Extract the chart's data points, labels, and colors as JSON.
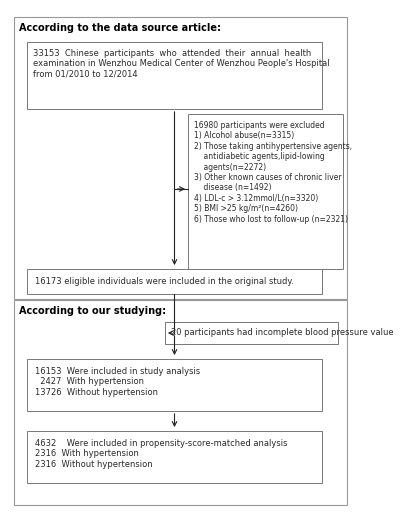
{
  "background_color": "#ffffff",
  "label_section1": "According to the data source article:",
  "label_section2": "According to our studying:",
  "box1_text": "33153  Chinese  participants  who  attended  their  annual  health\nexamination in Wenzhou Medical Center of Wenzhou People's Hospital\nfrom 01/2010 to 12/2014",
  "box2_text": "16980 participants were excluded\n1) Alcohol abuse(n=3315)\n2) Those taking antihypertensive agents,\n    antidiabetic agents,lipid-lowing\n    agents(n=2272)\n3) Other known causes of chronic liver\n    disease (n=1492)\n4) LDL-c > 3.12mmol/L(n=3320)\n5) BMI >25 kg/m²(n=4260)\n6) Those who lost to follow-up (n=2321)",
  "box3_text": "16173 eligible individuals were included in the original study.",
  "box4_text": "20 participants had incomplete blood pressure value",
  "box5_text": "16153  Were included in study analysis\n  2427  With hypertension\n13726  Without hypertension",
  "box6_text": "4632    Were included in propensity-score-matched analysis\n2316  With hypertension\n2316  Without hypertension",
  "font_size": 6.0,
  "font_size_label": 7.0,
  "text_color": "#2a2a2a",
  "box_edge_color": "#777777",
  "section_edge_color": "#999999",
  "arrow_color": "#222222"
}
